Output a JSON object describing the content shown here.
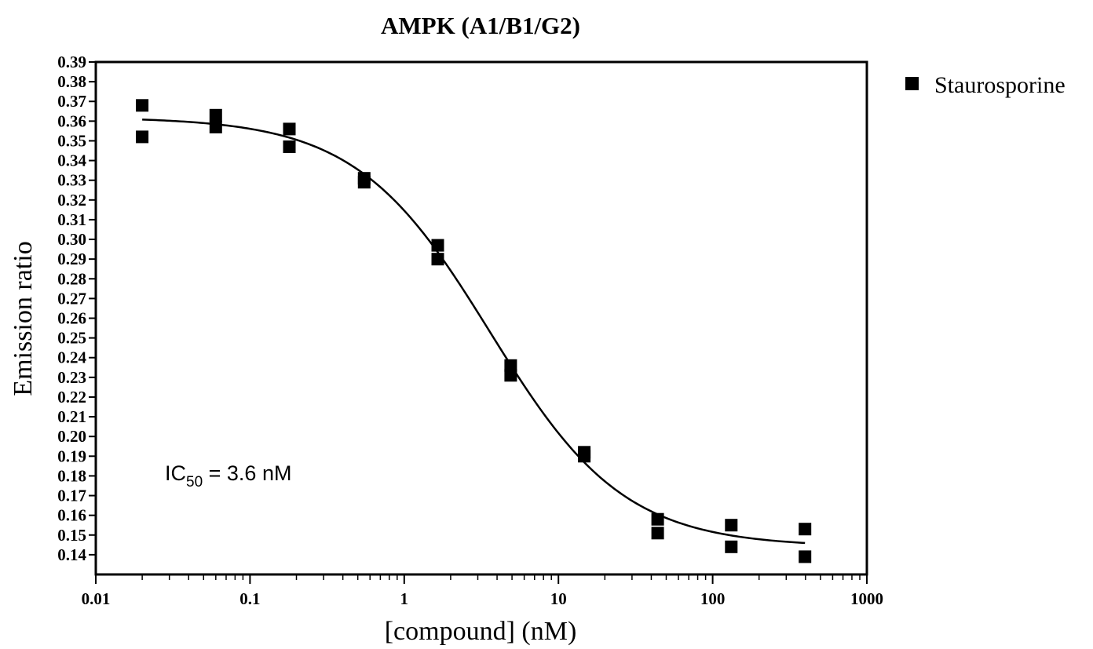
{
  "chart_data": {
    "type": "scatter",
    "title": "AMPK (A1/B1/G2)",
    "xlabel": "[compound] (nM)",
    "ylabel": "Emission ratio",
    "xscale": "log",
    "xlim": [
      0.01,
      1000
    ],
    "ylim": [
      0.13,
      0.39
    ],
    "x_ticks": [
      "0.01",
      "0.1",
      "1",
      "10",
      "100",
      "1000"
    ],
    "y_ticks": [
      "0.14",
      "0.15",
      "0.16",
      "0.17",
      "0.18",
      "0.19",
      "0.20",
      "0.21",
      "0.22",
      "0.23",
      "0.24",
      "0.25",
      "0.26",
      "0.27",
      "0.28",
      "0.29",
      "0.30",
      "0.31",
      "0.32",
      "0.33",
      "0.34",
      "0.35",
      "0.36",
      "0.37",
      "0.38",
      "0.39"
    ],
    "grid": false,
    "legend_position": "top-right",
    "series": [
      {
        "name": "Staurosporine",
        "marker": "square",
        "color": "#000000",
        "x": [
          0.02,
          0.02,
          0.06,
          0.06,
          0.18,
          0.18,
          0.55,
          0.55,
          1.65,
          1.65,
          4.9,
          4.9,
          14.7,
          14.7,
          44,
          44,
          132,
          132,
          397,
          397
        ],
        "y": [
          0.368,
          0.352,
          0.363,
          0.357,
          0.356,
          0.347,
          0.331,
          0.329,
          0.297,
          0.29,
          0.236,
          0.231,
          0.192,
          0.19,
          0.158,
          0.151,
          0.155,
          0.144,
          0.153,
          0.139
        ],
        "fit": {
          "model": "sigmoidal dose-response",
          "top": 0.362,
          "bottom": 0.144,
          "ic50": 3.6,
          "hill": 1.0,
          "x_range": [
            0.02,
            397
          ]
        }
      }
    ],
    "annotations": [
      {
        "text_main": "IC",
        "text_sub": "50",
        "text_rest": " = 3.6 nM"
      }
    ]
  }
}
